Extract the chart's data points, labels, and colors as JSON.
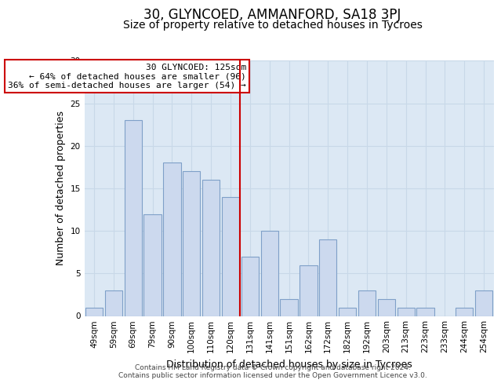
{
  "title": "30, GLYNCOED, AMMANFORD, SA18 3PJ",
  "subtitle": "Size of property relative to detached houses in Tycroes",
  "xlabel": "Distribution of detached houses by size in Tycroes",
  "ylabel": "Number of detached properties",
  "bar_labels": [
    "49sqm",
    "59sqm",
    "69sqm",
    "79sqm",
    "90sqm",
    "100sqm",
    "110sqm",
    "120sqm",
    "131sqm",
    "141sqm",
    "151sqm",
    "162sqm",
    "172sqm",
    "182sqm",
    "192sqm",
    "203sqm",
    "213sqm",
    "223sqm",
    "233sqm",
    "244sqm",
    "254sqm"
  ],
  "bar_values": [
    1,
    3,
    23,
    12,
    18,
    17,
    16,
    14,
    7,
    10,
    2,
    6,
    9,
    1,
    3,
    2,
    1,
    1,
    0,
    1,
    3
  ],
  "bar_color": "#ccd9ee",
  "bar_edgecolor": "#7fa0c8",
  "vline_x_idx": 8,
  "vline_color": "#cc0000",
  "annotation_box_text": "30 GLYNCOED: 125sqm\n← 64% of detached houses are smaller (96)\n36% of semi-detached houses are larger (54) →",
  "annotation_box_color": "#cc0000",
  "annotation_box_facecolor": "white",
  "ylim": [
    0,
    30
  ],
  "yticks": [
    0,
    5,
    10,
    15,
    20,
    25,
    30
  ],
  "grid_color": "#c8d8e8",
  "background_color": "#dce8f4",
  "footer_line1": "Contains HM Land Registry data © Crown copyright and database right 2024.",
  "footer_line2": "Contains public sector information licensed under the Open Government Licence v3.0.",
  "title_fontsize": 12,
  "subtitle_fontsize": 10,
  "axis_label_fontsize": 9,
  "tick_fontsize": 7.5,
  "annot_fontsize": 8,
  "footer_fontsize": 6.5
}
